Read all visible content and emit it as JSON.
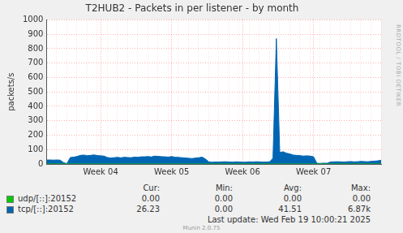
{
  "chart_data": {
    "type": "area",
    "title": "T2HUB2 - Packets in per listener - by month",
    "y_label": "packets/s",
    "categories": [
      null,
      null,
      null,
      null,
      null,
      null,
      null,
      null,
      null,
      null,
      null,
      null,
      null,
      null,
      null,
      null,
      "Week 04",
      null,
      null,
      null,
      null,
      null,
      null,
      null,
      null,
      null,
      null,
      null,
      null,
      null,
      null,
      null,
      null,
      null,
      null,
      null,
      null,
      "Week 05",
      null,
      null,
      null,
      null,
      null,
      null,
      null,
      null,
      null,
      null,
      null,
      null,
      null,
      null,
      null,
      null,
      null,
      null,
      null,
      null,
      "Week 06",
      null,
      null,
      null,
      null,
      null,
      null,
      null,
      null,
      null,
      null,
      null,
      null,
      null,
      null,
      null,
      null,
      null,
      null,
      null,
      null,
      "Week 07",
      null,
      null,
      null,
      null,
      null,
      null,
      null,
      null,
      null,
      null,
      null,
      null,
      null,
      null,
      null,
      null,
      null,
      null,
      null,
      null
    ],
    "series": [
      {
        "name": "udp/[::]:20152",
        "color": "#00cc00",
        "values": [
          0,
          0,
          0,
          0,
          0,
          0,
          0,
          0,
          0,
          0,
          0,
          0,
          0,
          0,
          0,
          0,
          0,
          0,
          0,
          0,
          0,
          0,
          0,
          0,
          0,
          0,
          0,
          0,
          0,
          0,
          0,
          0,
          0,
          0,
          0,
          0,
          0,
          0,
          0,
          0,
          0,
          0,
          0,
          0,
          0,
          0,
          0,
          0,
          0,
          0,
          0,
          0,
          0,
          0,
          0,
          0,
          0,
          0,
          0,
          0,
          0,
          0,
          0,
          0,
          0,
          0,
          0,
          0,
          0,
          0,
          0,
          0,
          0,
          0,
          0,
          0,
          0,
          0,
          0,
          0,
          0,
          0,
          0,
          0,
          0,
          0,
          0,
          0,
          0,
          0,
          0,
          0,
          0,
          0,
          0,
          0,
          0,
          0,
          0,
          0
        ],
        "stats": [
          "0.00",
          "0.00",
          "0.00",
          "0.00"
        ]
      },
      {
        "name": "tcp/[::]:20152",
        "color": "#0066b3",
        "values": [
          28,
          28,
          27,
          28,
          27,
          10,
          2,
          45,
          48,
          52,
          60,
          62,
          58,
          60,
          63,
          59,
          57,
          55,
          45,
          42,
          44,
          46,
          43,
          47,
          45,
          44,
          48,
          46,
          50,
          50,
          52,
          49,
          55,
          53,
          51,
          50,
          48,
          52,
          47,
          46,
          44,
          42,
          40,
          38,
          41,
          43,
          48,
          35,
          15,
          12,
          14,
          13,
          15,
          16,
          14,
          13,
          15,
          14,
          12,
          13,
          15,
          14,
          16,
          15,
          13,
          14,
          15,
          40,
          870,
          80,
          85,
          75,
          70,
          62,
          60,
          58,
          55,
          57,
          55,
          50,
          5,
          4,
          6,
          5,
          14,
          15,
          16,
          15,
          14,
          16,
          17,
          15,
          16,
          18,
          17,
          16,
          18,
          20,
          22,
          26
        ],
        "stats": [
          "26.23",
          "0.00",
          "41.51",
          "6.87k"
        ]
      }
    ],
    "stats_header": [
      "Cur:",
      "Min:",
      "Avg:",
      "Max:"
    ],
    "footer": "Last update: Wed Feb 19 10:00:21 2025",
    "credit": "Munin 2.0.75",
    "side_text": "RRDTOOL / TOBI OETIKER",
    "ylim": [
      0,
      1000
    ],
    "yticks": [
      0,
      100,
      200,
      300,
      400,
      500,
      600,
      700,
      800,
      900,
      1000
    ],
    "grid": true
  }
}
